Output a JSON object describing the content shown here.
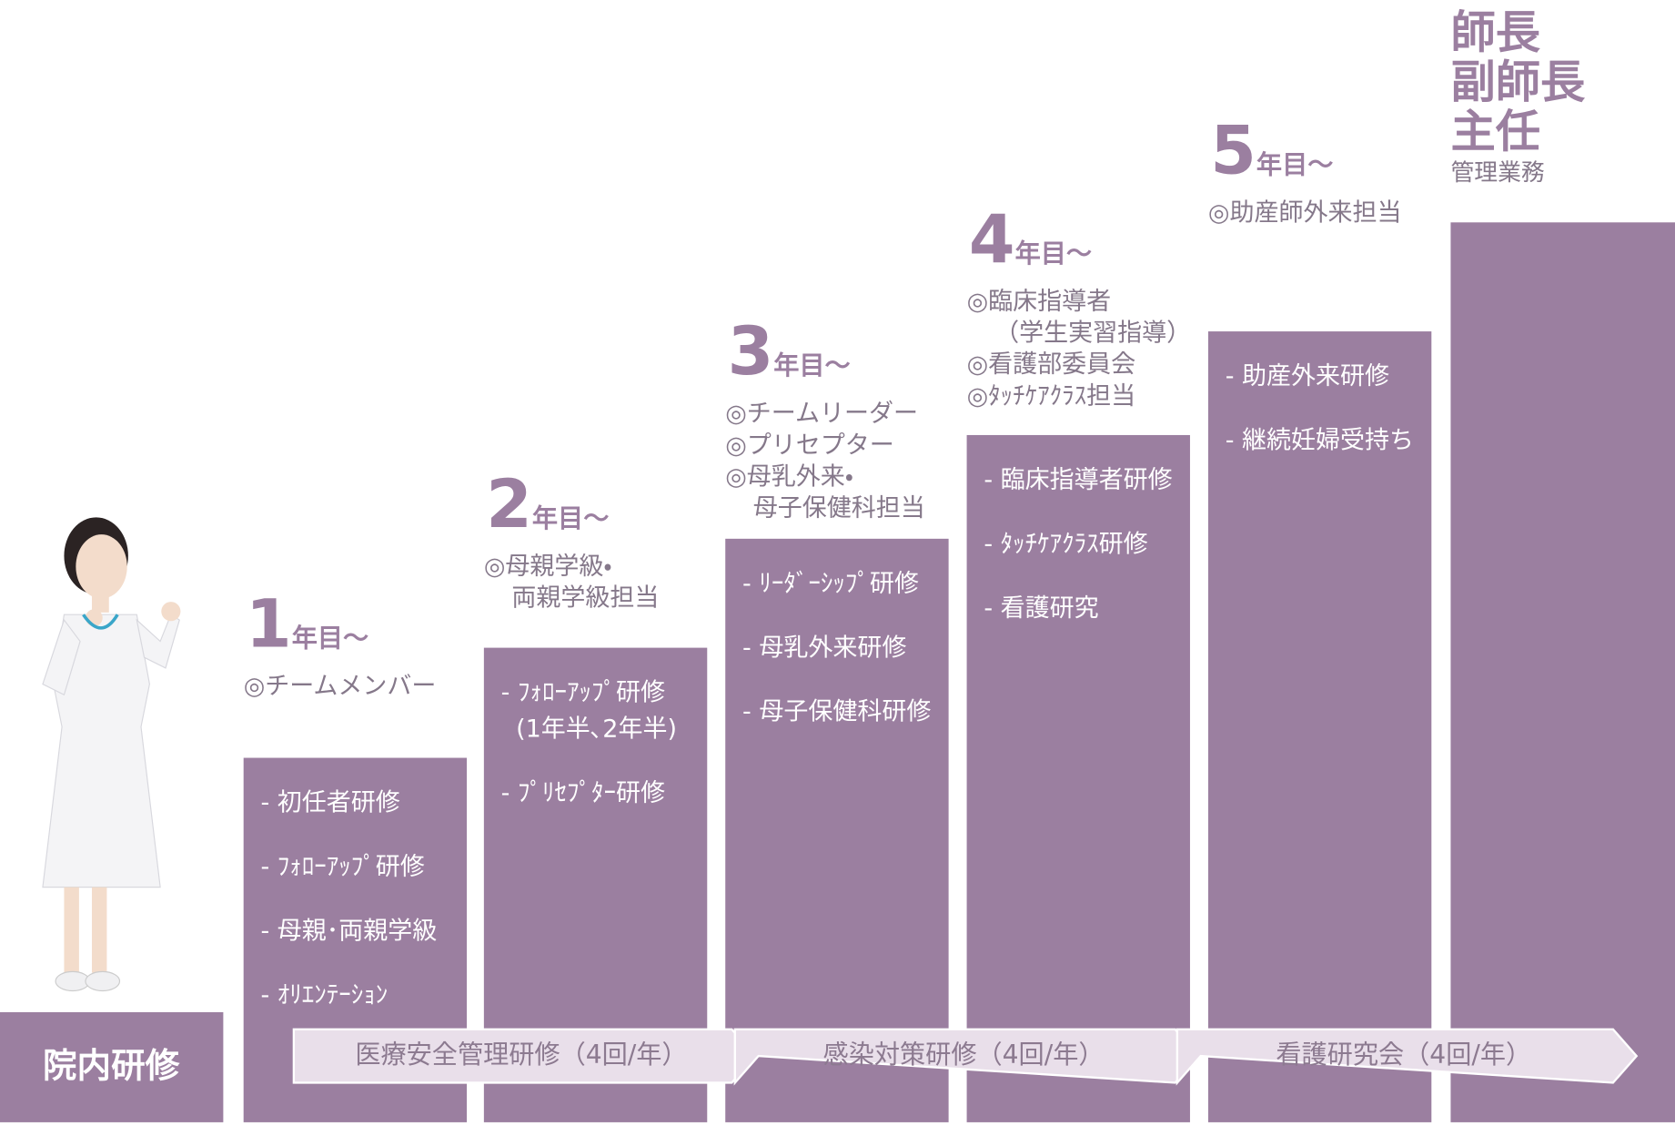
{
  "left_label": "院内研修",
  "steps": [
    {
      "year": "1",
      "year_suffix": "年目～",
      "roles": [
        "◎チームメンバー"
      ],
      "trainings": [
        "- 初任者研修",
        "- ﾌｫﾛｰｱｯﾌﾟ研修",
        "- 母親･両親学級",
        "- ｵﾘｴﾝﾃｰｼｮﾝ"
      ]
    },
    {
      "year": "2",
      "year_suffix": "年目～",
      "roles": [
        "◎母親学級・",
        "両親学級担当"
      ],
      "trainings": [
        "- ﾌｫﾛｰｱｯﾌﾟ研修",
        "(1年半､2年半)",
        "- ﾌﾟﾘｾﾌﾟﾀｰ研修"
      ]
    },
    {
      "year": "3",
      "year_suffix": "年目～",
      "roles": [
        "◎チームリーダー",
        "◎プリセプター",
        "◎母乳外来・",
        "母子保健科担当"
      ],
      "trainings": [
        "- ﾘｰﾀﾞｰｼｯﾌﾟ研修",
        "- 母乳外来研修",
        "- 母子保健科研修"
      ]
    },
    {
      "year": "4",
      "year_suffix": "年目～",
      "roles": [
        "◎臨床指導者",
        "（学生実習指導）",
        "◎看護部委員会",
        "◎ﾀｯﾁｹｱｸﾗｽ担当"
      ],
      "trainings": [
        "- 臨床指導者研修",
        "- ﾀｯﾁｹｱｸﾗｽ研修",
        "- 看護研究"
      ]
    },
    {
      "year": "5",
      "year_suffix": "年目～",
      "roles": [
        "◎助産師外来担当"
      ],
      "trainings": [
        "- 助産外来研修",
        "- 継続妊婦受持ち"
      ]
    }
  ],
  "top": {
    "titles": [
      "師長",
      "副師長",
      "主任"
    ],
    "duty": "管理業務"
  },
  "bands": [
    "医療安全管理研修（4回/年）",
    "感染対策研修（4回/年）",
    "看護研究会（4回/年）"
  ]
}
